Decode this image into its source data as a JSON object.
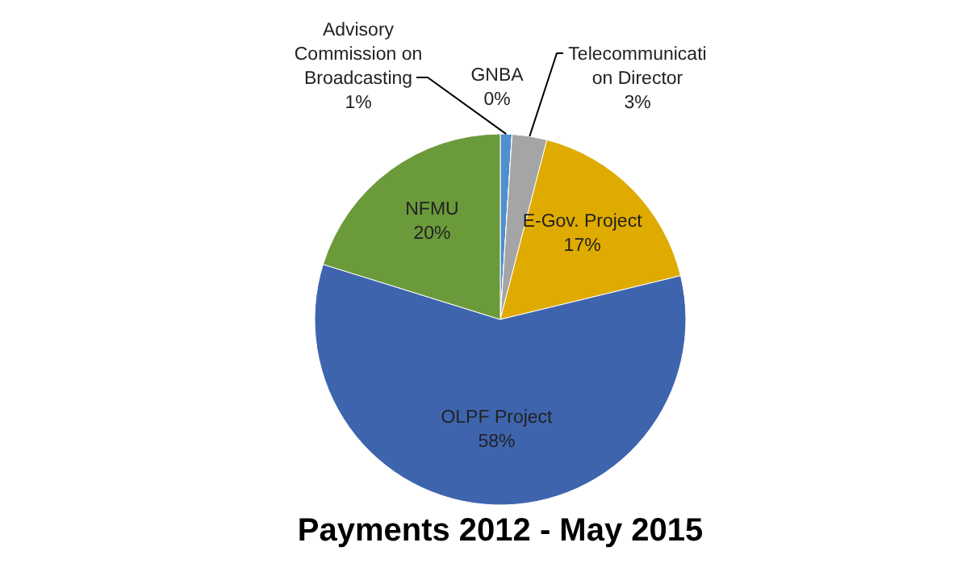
{
  "chart_data": {
    "type": "pie",
    "title": "Payments 2012 - May 2015",
    "categories": [
      "Advisory Commission on Broadcasting",
      "GNBA",
      "Telecommunication Director",
      "E-Gov. Project",
      "OLPF Project",
      "NFMU"
    ],
    "values": [
      1,
      0,
      3,
      17,
      58,
      20
    ],
    "colors": [
      "#4f8fcf",
      "#264478",
      "#a5a5a5",
      "#dfab00",
      "#3e64ae",
      "#6b9a3b"
    ],
    "value_labels": [
      "1%",
      "0%",
      "3%",
      "17%",
      "58%",
      "20%"
    ]
  }
}
